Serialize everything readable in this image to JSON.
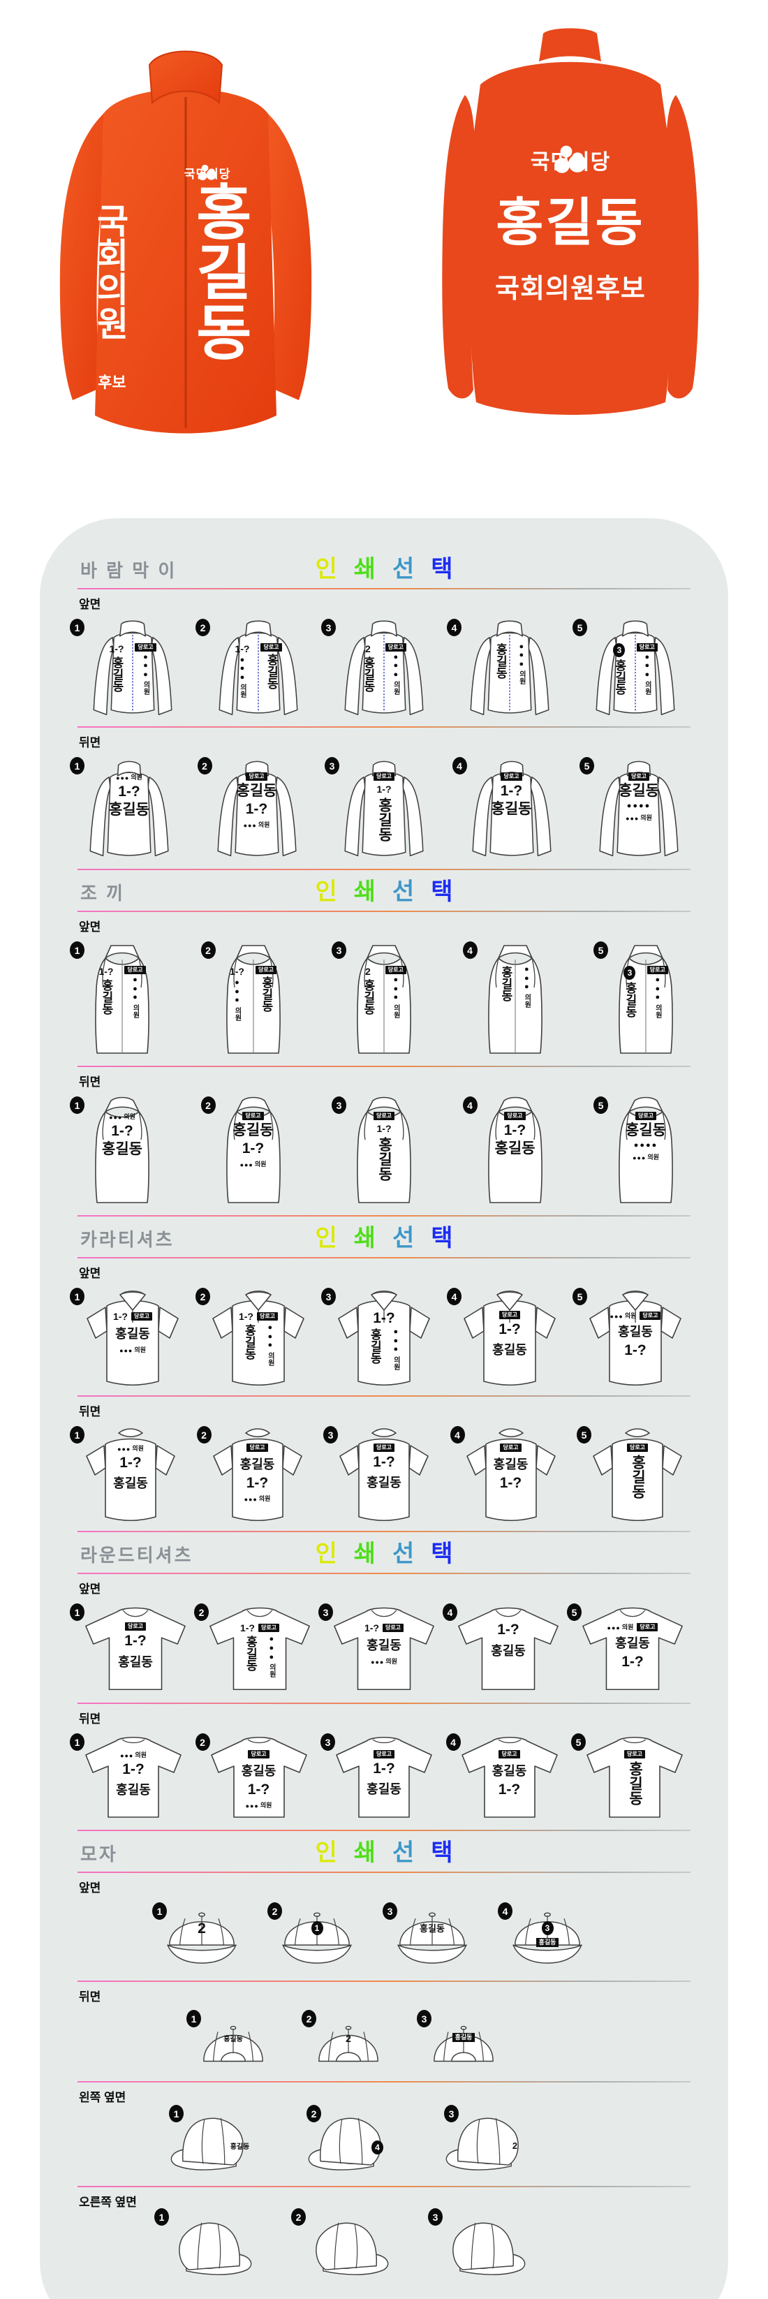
{
  "hero": {
    "front_jacket": {
      "party": "국민의당",
      "name": "홍길동",
      "side_title": "국회의원",
      "side_sub": "후보"
    },
    "back_jacket": {
      "party": "국민의당",
      "name": "홍길동",
      "title": "국회의원후보"
    }
  },
  "colors": {
    "orange": "#e94a1d",
    "orange_dark": "#d93c0e",
    "panel_bg": "#e6ebea",
    "badge": "#0b0b0b",
    "divider_gradient": [
      "#f473c6",
      "#ef8b4a",
      "#a9aeb0"
    ],
    "print_select_colors": [
      "#dce90c",
      "#4ede18",
      "#3e97c8",
      "#1c2cf2"
    ]
  },
  "print_select": {
    "chars": [
      "인",
      "쇄",
      "선",
      "택"
    ]
  },
  "placeholders": {
    "logo_box": "당로고",
    "number": "1-?",
    "name": "홍길동",
    "member": "의원",
    "party_dots": "●●●",
    "dots_row": "●●●●"
  },
  "sections": [
    {
      "id": "windbreaker",
      "title": "바 람 막 이",
      "rows": [
        {
          "face": "front",
          "label": "앞면",
          "items": [
            {
              "L": [
                [
                  "n",
                  "1-?"
                ],
                [
                  "vn",
                  "홍길동"
                ]
              ],
              "R": [
                [
                  "g"
                ],
                [
                  "d"
                ],
                [
                  "vs",
                  "의원"
                ]
              ]
            },
            {
              "L": [
                [
                  "n",
                  "1-?"
                ],
                [
                  "d"
                ],
                [
                  "vs",
                  "의원"
                ]
              ],
              "R": [
                [
                  "g"
                ],
                [
                  "vn",
                  "홍길동"
                ]
              ]
            },
            {
              "L": [
                [
                  "n",
                  "2"
                ],
                [
                  "vn",
                  "홍길동"
                ]
              ],
              "R": [
                [
                  "g"
                ],
                [
                  "d"
                ],
                [
                  "vs",
                  "의원"
                ]
              ]
            },
            {
              "L": [
                [
                  "vn",
                  "홍길동"
                ]
              ],
              "R": [
                [
                  "d"
                ],
                [
                  "vs",
                  "의원"
                ]
              ]
            },
            {
              "L": [
                [
                  "b",
                  "3"
                ],
                [
                  "vn",
                  "홍길동"
                ]
              ],
              "R": [
                [
                  "g"
                ],
                [
                  "d"
                ],
                [
                  "vs",
                  "의원"
                ]
              ]
            }
          ]
        },
        {
          "face": "back",
          "label": "뒤면",
          "items": [
            {
              "C": [
                [
                  "hd",
                  "●●●",
                  "의원"
                ],
                [
                  "N",
                  "1-?"
                ],
                [
                  "N",
                  "홍길동"
                ]
              ]
            },
            {
              "C": [
                [
                  "g"
                ],
                [
                  "N",
                  "홍길동"
                ],
                [
                  "N",
                  "1-?"
                ],
                [
                  "hd",
                  "●●●",
                  "의원"
                ]
              ]
            },
            {
              "C": [
                [
                  "g"
                ],
                [
                  "n",
                  "1-?"
                ],
                [
                  "vb",
                  "홍길동"
                ]
              ]
            },
            {
              "C": [
                [
                  "g"
                ],
                [
                  "N",
                  "1-?"
                ],
                [
                  "N",
                  "홍길동"
                ]
              ]
            },
            {
              "C": [
                [
                  "g"
                ],
                [
                  "N",
                  "홍길동"
                ],
                [
                  "dr",
                  "●●●●"
                ],
                [
                  "hd",
                  "●●●",
                  "의원"
                ]
              ]
            }
          ]
        }
      ]
    },
    {
      "id": "vest",
      "title": "조 끼",
      "rows": [
        {
          "face": "front",
          "label": "앞면",
          "items": [
            {
              "L": [
                [
                  "n",
                  "1-?"
                ],
                [
                  "vn",
                  "홍길동"
                ]
              ],
              "R": [
                [
                  "g"
                ],
                [
                  "d"
                ],
                [
                  "vs",
                  "의원"
                ]
              ]
            },
            {
              "L": [
                [
                  "n",
                  "1-?"
                ],
                [
                  "d"
                ],
                [
                  "vs",
                  "의원"
                ]
              ],
              "R": [
                [
                  "g"
                ],
                [
                  "vn",
                  "홍길동"
                ]
              ]
            },
            {
              "L": [
                [
                  "n",
                  "2"
                ],
                [
                  "vn",
                  "홍길동"
                ]
              ],
              "R": [
                [
                  "g"
                ],
                [
                  "d"
                ],
                [
                  "vs",
                  "의원"
                ]
              ]
            },
            {
              "L": [
                [
                  "vn",
                  "홍길동"
                ]
              ],
              "R": [
                [
                  "d"
                ],
                [
                  "vs",
                  "의원"
                ]
              ]
            },
            {
              "L": [
                [
                  "b",
                  "3"
                ],
                [
                  "vn",
                  "홍길동"
                ]
              ],
              "R": [
                [
                  "g"
                ],
                [
                  "d"
                ],
                [
                  "vs",
                  "의원"
                ]
              ]
            }
          ]
        },
        {
          "face": "back",
          "label": "뒤면",
          "items": [
            {
              "C": [
                [
                  "hd",
                  "●●●",
                  "의원"
                ],
                [
                  "N",
                  "1-?"
                ],
                [
                  "N",
                  "홍길동"
                ]
              ]
            },
            {
              "C": [
                [
                  "g"
                ],
                [
                  "N",
                  "홍길동"
                ],
                [
                  "N",
                  "1-?"
                ],
                [
                  "hd",
                  "●●●",
                  "의원"
                ]
              ]
            },
            {
              "C": [
                [
                  "g"
                ],
                [
                  "n",
                  "1-?"
                ],
                [
                  "vb",
                  "홍길동"
                ]
              ]
            },
            {
              "C": [
                [
                  "g"
                ],
                [
                  "N",
                  "1-?"
                ],
                [
                  "N",
                  "홍길동"
                ]
              ]
            },
            {
              "C": [
                [
                  "g"
                ],
                [
                  "N",
                  "홍길동"
                ],
                [
                  "dr",
                  "●●●●"
                ],
                [
                  "hd",
                  "●●●",
                  "의원"
                ]
              ]
            }
          ]
        }
      ]
    },
    {
      "id": "polo",
      "title": "카라티셔츠",
      "rows": [
        {
          "face": "front",
          "label": "앞면",
          "items": [
            {
              "T": [
                [
                  "n",
                  "1-?"
                ],
                [
                  "g"
                ]
              ],
              "C": [
                [
                  "nm",
                  "홍길동"
                ],
                [
                  "hd",
                  "●●●",
                  "의원"
                ]
              ]
            },
            {
              "T": [
                [
                  "n",
                  "1-?"
                ],
                [
                  "g"
                ]
              ],
              "L": [
                [
                  "vn",
                  "홍길동"
                ]
              ],
              "R": [
                [
                  "d"
                ],
                [
                  "vs",
                  "의원"
                ]
              ]
            },
            {
              "T": [
                [
                  "N",
                  "1-?"
                ]
              ],
              "L": [
                [
                  "vn",
                  "홍길동"
                ]
              ],
              "R": [
                [
                  "d"
                ],
                [
                  "vs",
                  "의원"
                ]
              ]
            },
            {
              "C": [
                [
                  "g"
                ],
                [
                  "N",
                  "1-?"
                ],
                [
                  "nm",
                  "홍길동"
                ]
              ]
            },
            {
              "T": [
                [
                  "hd",
                  "●●●",
                  "의원"
                ],
                [
                  "g"
                ]
              ],
              "C": [
                [
                  "nm",
                  "홍길동"
                ],
                [
                  "N",
                  "1-?"
                ]
              ]
            }
          ]
        },
        {
          "face": "back",
          "label": "뒤면",
          "items": [
            {
              "C": [
                [
                  "hd",
                  "●●●",
                  "의원"
                ],
                [
                  "N",
                  "1-?"
                ],
                [
                  "nm",
                  "홍길동"
                ]
              ]
            },
            {
              "C": [
                [
                  "g"
                ],
                [
                  "nm",
                  "홍길동"
                ],
                [
                  "N",
                  "1-?"
                ],
                [
                  "hd",
                  "●●●",
                  "의원"
                ]
              ]
            },
            {
              "C": [
                [
                  "g"
                ],
                [
                  "N",
                  "1-?"
                ],
                [
                  "nm",
                  "홍길동"
                ]
              ]
            },
            {
              "C": [
                [
                  "g"
                ],
                [
                  "nm",
                  "홍길동"
                ],
                [
                  "N",
                  "1-?"
                ]
              ]
            },
            {
              "C": [
                [
                  "g"
                ],
                [
                  "vb",
                  "홍길동"
                ]
              ]
            }
          ]
        }
      ]
    },
    {
      "id": "tee",
      "title": "라운드티셔츠",
      "rows": [
        {
          "face": "front",
          "label": "앞면",
          "items": [
            {
              "C": [
                [
                  "g"
                ],
                [
                  "N",
                  "1-?"
                ],
                [
                  "nm",
                  "홍길동"
                ]
              ]
            },
            {
              "T": [
                [
                  "n",
                  "1-?"
                ],
                [
                  "g"
                ]
              ],
              "L": [
                [
                  "vn",
                  "홍길동"
                ]
              ],
              "R": [
                [
                  "d"
                ],
                [
                  "vs",
                  "의원"
                ]
              ]
            },
            {
              "T": [
                [
                  "n",
                  "1-?"
                ],
                [
                  "g"
                ]
              ],
              "C": [
                [
                  "nm",
                  "홍길동"
                ],
                [
                  "hd",
                  "●●●",
                  "의원"
                ]
              ]
            },
            {
              "C": [
                [
                  "N",
                  "1-?"
                ],
                [
                  "nm",
                  "홍길동"
                ]
              ]
            },
            {
              "T": [
                [
                  "hd",
                  "●●●",
                  "의원"
                ],
                [
                  "g"
                ]
              ],
              "C": [
                [
                  "nm",
                  "홍길동"
                ],
                [
                  "N",
                  "1-?"
                ]
              ]
            }
          ]
        },
        {
          "face": "back",
          "label": "뒤면",
          "items": [
            {
              "C": [
                [
                  "hd",
                  "●●●",
                  "의원"
                ],
                [
                  "N",
                  "1-?"
                ],
                [
                  "nm",
                  "홍길동"
                ]
              ]
            },
            {
              "C": [
                [
                  "g"
                ],
                [
                  "nm",
                  "홍길동"
                ],
                [
                  "N",
                  "1-?"
                ],
                [
                  "hd",
                  "●●●",
                  "의원"
                ]
              ]
            },
            {
              "C": [
                [
                  "g"
                ],
                [
                  "N",
                  "1-?"
                ],
                [
                  "nm",
                  "홍길동"
                ]
              ]
            },
            {
              "C": [
                [
                  "g"
                ],
                [
                  "nm",
                  "홍길동"
                ],
                [
                  "N",
                  "1-?"
                ]
              ]
            },
            {
              "C": [
                [
                  "g"
                ],
                [
                  "vb",
                  "홍길동"
                ]
              ]
            }
          ]
        }
      ]
    },
    {
      "id": "cap",
      "title": "모자",
      "rows": [
        {
          "face": "front",
          "label": "앞면",
          "items": [
            {
              "C": [
                [
                  "N",
                  "2"
                ]
              ]
            },
            {
              "C": [
                [
                  "b",
                  "1"
                ]
              ]
            },
            {
              "C": [
                [
                  "nm",
                  "홍길동"
                ]
              ]
            },
            {
              "C": [
                [
                  "b",
                  "3"
                ],
                [
                  "bb",
                  "홍길동"
                ]
              ]
            }
          ]
        },
        {
          "face": "back",
          "label": "뒤면",
          "items": [
            {
              "C": [
                [
                  "sm",
                  "홍길동"
                ]
              ]
            },
            {
              "C": [
                [
                  "n",
                  "2"
                ]
              ]
            },
            {
              "C": [
                [
                  "bb",
                  "홍길동"
                ]
              ]
            }
          ]
        },
        {
          "face": "left",
          "label": "왼쪽 옆면",
          "items": [
            {
              "C": [
                [
                  "sm",
                  "홍길동"
                ]
              ]
            },
            {
              "C": [
                [
                  "b",
                  "4"
                ]
              ]
            },
            {
              "C": [
                [
                  "n",
                  "2"
                ]
              ]
            }
          ]
        },
        {
          "face": "right",
          "label": "오른쪽 옆면",
          "items": [
            {
              "C": []
            },
            {
              "C": []
            },
            {
              "C": []
            }
          ]
        }
      ]
    }
  ]
}
